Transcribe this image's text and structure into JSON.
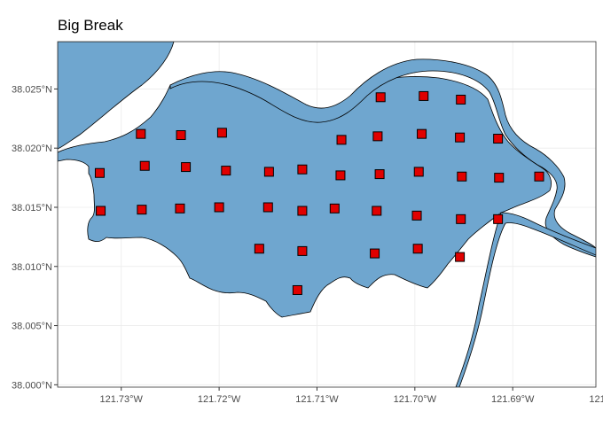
{
  "title": "Big Break",
  "colors": {
    "water": "#6fa6cf",
    "land": "#ffffff",
    "outline": "#000000",
    "point_fill": "#e00000",
    "point_stroke": "#000000",
    "grid": "#ebebeb"
  },
  "chart_data": {
    "type": "scatter",
    "xlim": [
      -121.7365,
      -121.6815
    ],
    "ylim": [
      37.9998,
      38.029
    ],
    "x_ticks": [
      -121.73,
      -121.72,
      -121.71,
      -121.7,
      -121.69,
      -121.68
    ],
    "x_tick_labels": [
      "121.73°W",
      "121.72°W",
      "121.71°W",
      "121.70°W",
      "121.69°W",
      "121.68°W"
    ],
    "y_ticks": [
      38.0,
      38.005,
      38.01,
      38.015,
      38.02,
      38.025
    ],
    "y_tick_labels": [
      "38.000°N",
      "38.005°N",
      "38.010°N",
      "38.015°N",
      "38.020°N",
      "38.025°N"
    ],
    "grid": true,
    "points": [
      [
        -121.7035,
        38.0243
      ],
      [
        -121.6991,
        38.0244
      ],
      [
        -121.6953,
        38.0241
      ],
      [
        -121.728,
        38.0212
      ],
      [
        -121.7239,
        38.0211
      ],
      [
        -121.7197,
        38.0213
      ],
      [
        -121.7075,
        38.0207
      ],
      [
        -121.7038,
        38.021
      ],
      [
        -121.6993,
        38.0212
      ],
      [
        -121.6954,
        38.0209
      ],
      [
        -121.6915,
        38.0208
      ],
      [
        -121.7276,
        38.0185
      ],
      [
        -121.7234,
        38.0184
      ],
      [
        -121.7193,
        38.0181
      ],
      [
        -121.7149,
        38.018
      ],
      [
        -121.7115,
        38.0182
      ],
      [
        -121.7076,
        38.0177
      ],
      [
        -121.7036,
        38.0178
      ],
      [
        -121.6996,
        38.018
      ],
      [
        -121.6952,
        38.0176
      ],
      [
        -121.6914,
        38.0175
      ],
      [
        -121.6873,
        38.0176
      ],
      [
        -121.7322,
        38.0179
      ],
      [
        -121.7321,
        38.0147
      ],
      [
        -121.7279,
        38.0148
      ],
      [
        -121.724,
        38.0149
      ],
      [
        -121.72,
        38.015
      ],
      [
        -121.715,
        38.015
      ],
      [
        -121.7115,
        38.0147
      ],
      [
        -121.7082,
        38.0149
      ],
      [
        -121.7039,
        38.0147
      ],
      [
        -121.6998,
        38.0143
      ],
      [
        -121.6953,
        38.014
      ],
      [
        -121.6915,
        38.014
      ],
      [
        -121.7159,
        38.0115
      ],
      [
        -121.7115,
        38.0113
      ],
      [
        -121.7041,
        38.0111
      ],
      [
        -121.6997,
        38.0115
      ],
      [
        -121.6954,
        38.0108
      ],
      [
        -121.712,
        38.008
      ]
    ]
  }
}
